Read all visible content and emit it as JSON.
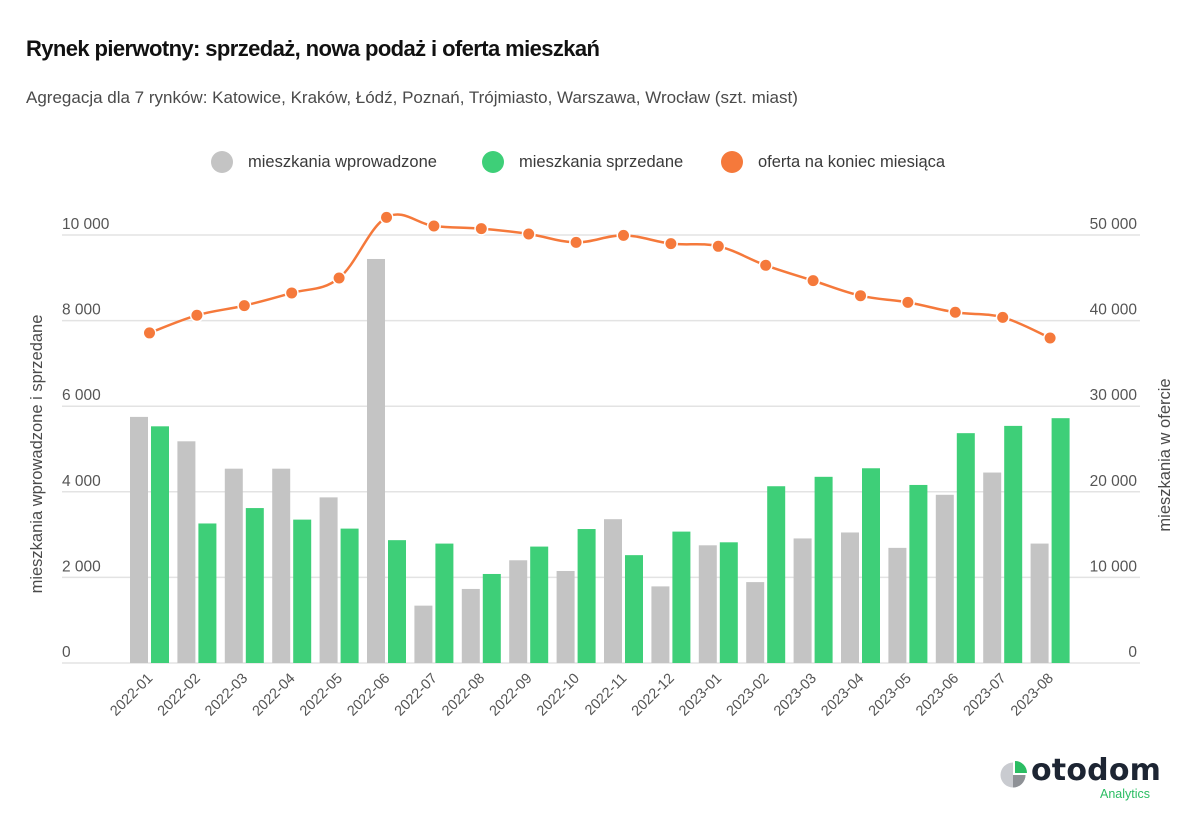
{
  "header": {
    "title": "Rynek pierwotny: sprzedaż, nowa podaż i oferta mieszkań",
    "subtitle": "Agregacja dla 7 rynków: Katowice, Kraków, Łódź, Poznań, Trójmiasto, Warszawa, Wrocław (szt. miast)"
  },
  "legend": [
    {
      "label": "mieszkania wprowadzone",
      "color": "#c4c4c4"
    },
    {
      "label": "mieszkania sprzedane",
      "color": "#3ecf78"
    },
    {
      "label": "oferta na koniec miesiąca",
      "color": "#f5793b"
    }
  ],
  "logo": {
    "name": "otodom",
    "sub": "Analytics",
    "icon": "pie-logo-icon"
  },
  "chart_data": {
    "type": "bar",
    "title": "Rynek pierwotny: sprzedaż, nowa podaż i oferta mieszkań",
    "subtitle": "Agregacja dla 7 rynków: Katowice, Kraków, Łódź, Poznań, Trójmiasto, Warszawa, Wrocław (szt. miast)",
    "xlabel": "",
    "ylabel": "mieszkania wprowadzone i sprzedane",
    "y2label": "mieszkania w ofercie",
    "ylim": [
      0,
      10000
    ],
    "y2lim": [
      0,
      50000
    ],
    "yticks": [
      0,
      2000,
      4000,
      6000,
      8000,
      10000
    ],
    "yticks_labels": [
      "0",
      "2 000",
      "4 000",
      "6 000",
      "8 000",
      "10 000"
    ],
    "y2ticks": [
      0,
      10000,
      20000,
      30000,
      40000,
      50000
    ],
    "y2ticks_labels": [
      "0",
      "10 000",
      "20 000",
      "30 000",
      "40 000",
      "50 000"
    ],
    "grid": true,
    "legend_position": "top-center",
    "categories": [
      "2022-01",
      "2022-02",
      "2022-03",
      "2022-04",
      "2022-05",
      "2022-06",
      "2022-07",
      "2022-08",
      "2022-09",
      "2022-10",
      "2022-11",
      "2022-12",
      "2023-01",
      "2023-02",
      "2023-03",
      "2023-04",
      "2023-05",
      "2023-06",
      "2023-07",
      "2023-08"
    ],
    "series": [
      {
        "name": "mieszkania wprowadzone",
        "type": "bar",
        "axis": "left",
        "color": "#c4c4c4",
        "values": [
          5750,
          5180,
          4540,
          4540,
          3870,
          9440,
          1340,
          1730,
          2400,
          2150,
          3360,
          1790,
          2750,
          1890,
          2910,
          3050,
          2690,
          3930,
          4450,
          2790
        ]
      },
      {
        "name": "mieszkania sprzedane",
        "type": "bar",
        "axis": "left",
        "color": "#3ecf78",
        "values": [
          5530,
          3260,
          3620,
          3350,
          3140,
          2870,
          2790,
          2080,
          2720,
          3130,
          2520,
          3070,
          2820,
          4130,
          4350,
          4550,
          4160,
          5370,
          5540,
          5720
        ]
      },
      {
        "name": "oferta na koniec miesiąca",
        "type": "line",
        "axis": "right",
        "color": "#f5793b",
        "values": [
          38560,
          40620,
          41750,
          43230,
          44980,
          52060,
          51050,
          50740,
          50120,
          49140,
          49960,
          48990,
          48680,
          46460,
          44670,
          42910,
          42130,
          40970,
          40380,
          37970
        ]
      }
    ]
  }
}
